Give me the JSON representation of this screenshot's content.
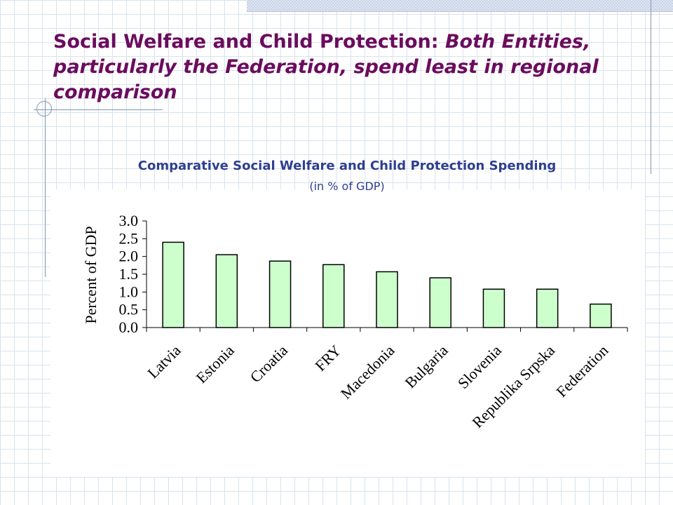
{
  "slide": {
    "title_plain": "Social Welfare and Child Protection: ",
    "title_italic": "Both Entities, particularly the Federation, spend least in regional comparison"
  },
  "chart_heading": "Comparative Social Welfare and Child Protection Spending",
  "chart_subheading": "(in % of GDP)",
  "colors": {
    "title": "#6b0c5e",
    "heading": "#2e3f8f",
    "bar_fill": "#ccffcc",
    "bar_stroke": "#000000"
  },
  "chart_data": {
    "type": "bar",
    "title": "",
    "xlabel": "",
    "ylabel": "Percent of GDP",
    "categories": [
      "Latvia",
      "Estonia",
      "Croatia",
      "FRY",
      "Macedonia",
      "Bulgaria",
      "Slovenia",
      "Republika Srpska",
      "Federation"
    ],
    "values": [
      2.4,
      2.05,
      1.87,
      1.77,
      1.57,
      1.4,
      1.08,
      1.08,
      0.66
    ],
    "ylim": [
      0,
      3.0
    ],
    "yticks": [
      "0.0",
      "0.5",
      "1.0",
      "1.5",
      "2.0",
      "2.5",
      "3.0"
    ],
    "grid": false,
    "legend": "none"
  }
}
